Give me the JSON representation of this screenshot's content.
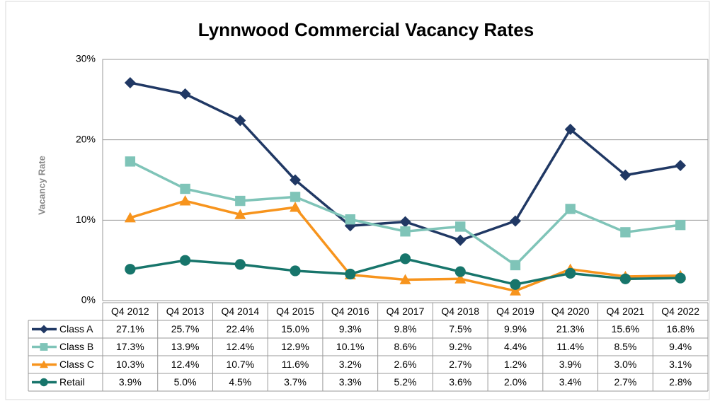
{
  "chart_data": {
    "type": "line",
    "title": "Lynnwood Commercial Vacancy Rates",
    "y_label": "Vacancy Rate",
    "categories": [
      "Q4 2012",
      "Q4 2013",
      "Q4 2014",
      "Q4 2015",
      "Q4 2016",
      "Q4 2017",
      "Q4 2018",
      "Q4 2019",
      "Q4 2020",
      "Q4 2021",
      "Q4 2022"
    ],
    "series": [
      {
        "name": "Class A",
        "color": "#203864",
        "marker": "diamond",
        "values": [
          27.1,
          25.7,
          22.4,
          15.0,
          9.3,
          9.8,
          7.5,
          9.9,
          21.3,
          15.6,
          16.8
        ],
        "value_labels": [
          "27.1%",
          "25.7%",
          "22.4%",
          "15.0%",
          "9.3%",
          "9.8%",
          "7.5%",
          "9.9%",
          "21.3%",
          "15.6%",
          "16.8%"
        ]
      },
      {
        "name": "Class B",
        "color": "#7fc4b8",
        "marker": "square",
        "values": [
          17.3,
          13.9,
          12.4,
          12.9,
          10.1,
          8.6,
          9.2,
          4.4,
          11.4,
          8.5,
          9.4
        ],
        "value_labels": [
          "17.3%",
          "13.9%",
          "12.4%",
          "12.9%",
          "10.1%",
          "8.6%",
          "9.2%",
          "4.4%",
          "11.4%",
          "8.5%",
          "9.4%"
        ]
      },
      {
        "name": "Class C",
        "color": "#f7941d",
        "marker": "triangle",
        "values": [
          10.3,
          12.4,
          10.7,
          11.6,
          3.2,
          2.6,
          2.7,
          1.2,
          3.9,
          3.0,
          3.1
        ],
        "value_labels": [
          "10.3%",
          "12.4%",
          "10.7%",
          "11.6%",
          "3.2%",
          "2.6%",
          "2.7%",
          "1.2%",
          "3.9%",
          "3.0%",
          "3.1%"
        ]
      },
      {
        "name": "Retail",
        "color": "#17756b",
        "marker": "circle",
        "values": [
          3.9,
          5.0,
          4.5,
          3.7,
          3.3,
          5.2,
          3.6,
          2.0,
          3.4,
          2.7,
          2.8
        ],
        "value_labels": [
          "3.9%",
          "5.0%",
          "4.5%",
          "3.7%",
          "3.3%",
          "5.2%",
          "3.6%",
          "2.0%",
          "3.4%",
          "2.7%",
          "2.8%"
        ]
      }
    ],
    "ylim": [
      0,
      30
    ],
    "yticks": [
      {
        "value": 0,
        "label": "0%"
      },
      {
        "value": 10,
        "label": "10%"
      },
      {
        "value": 20,
        "label": "20%"
      },
      {
        "value": 30,
        "label": "30%"
      }
    ],
    "grid": true
  }
}
